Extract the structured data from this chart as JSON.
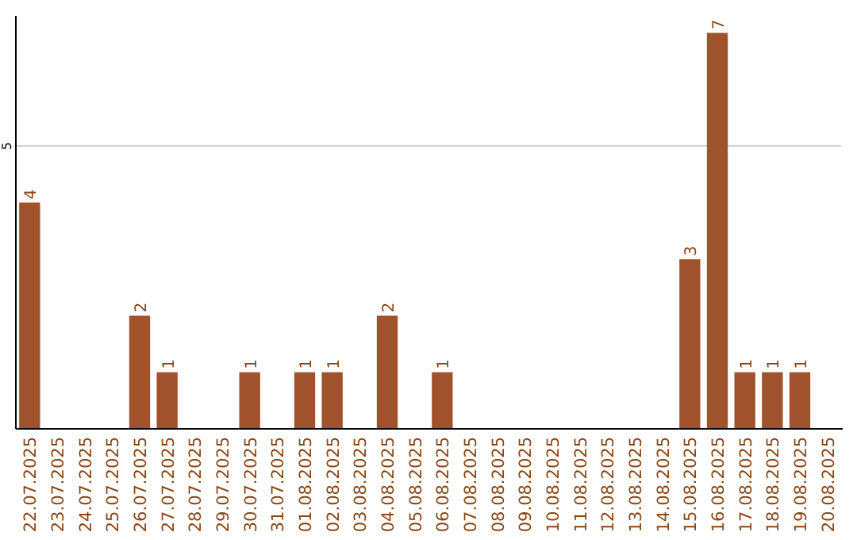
{
  "chart_data": {
    "type": "bar",
    "categories": [
      "22.07.2025",
      "23.07.2025",
      "24.07.2025",
      "25.07.2025",
      "26.07.2025",
      "27.07.2025",
      "28.07.2025",
      "29.07.2025",
      "30.07.2025",
      "31.07.2025",
      "01.08.2025",
      "02.08.2025",
      "03.08.2025",
      "04.08.2025",
      "05.08.2025",
      "06.08.2025",
      "07.08.2025",
      "08.08.2025",
      "09.08.2025",
      "10.08.2025",
      "11.08.2025",
      "12.08.2025",
      "13.08.2025",
      "14.08.2025",
      "15.08.2025",
      "16.08.2025",
      "17.08.2025",
      "18.08.2025",
      "19.08.2025",
      "20.08.2025"
    ],
    "values": [
      4,
      0,
      0,
      0,
      2,
      1,
      0,
      0,
      1,
      0,
      1,
      1,
      0,
      2,
      0,
      1,
      0,
      0,
      0,
      0,
      0,
      0,
      0,
      0,
      3,
      7,
      1,
      1,
      1,
      0
    ],
    "value_labels": [
      "4",
      null,
      null,
      null,
      "2",
      "1",
      null,
      null,
      "1",
      null,
      "1",
      "1",
      null,
      "2",
      null,
      "1",
      null,
      null,
      null,
      null,
      null,
      null,
      null,
      null,
      "3",
      "7",
      "1",
      "1",
      "1",
      null
    ],
    "color": "#a0522d",
    "ylim": [
      0,
      7.3
    ],
    "yticks": [
      5
    ],
    "grid": "y"
  }
}
